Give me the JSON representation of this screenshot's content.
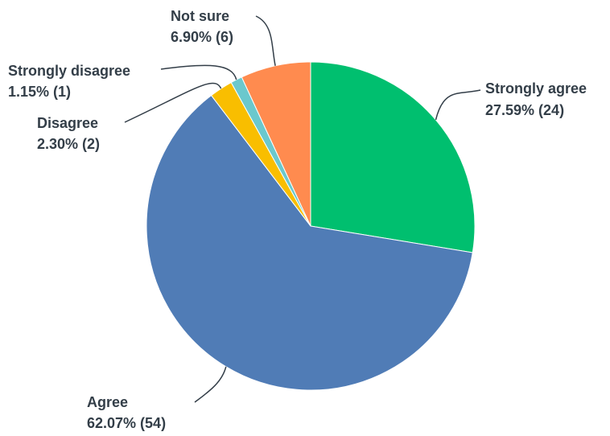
{
  "chart_data": {
    "type": "pie",
    "title": "",
    "slices": [
      {
        "label": "Strongly agree",
        "percent_text": "27.59% (24)",
        "percent": 27.59,
        "count": 24,
        "color": "#00bf6f"
      },
      {
        "label": "Agree",
        "percent_text": "62.07% (54)",
        "percent": 62.07,
        "count": 54,
        "color": "#507cb6"
      },
      {
        "label": "Disagree",
        "percent_text": "2.30% (2)",
        "percent": 2.3,
        "count": 2,
        "color": "#f9be00"
      },
      {
        "label": "Strongly disagree",
        "percent_text": "1.15% (1)",
        "percent": 1.15,
        "count": 1,
        "color": "#6bc8cd"
      },
      {
        "label": "Not sure",
        "percent_text": "6.90% (6)",
        "percent": 6.9,
        "count": 6,
        "color": "#ff8b4f"
      }
    ],
    "legend": "none",
    "start": "top, clockwise"
  }
}
